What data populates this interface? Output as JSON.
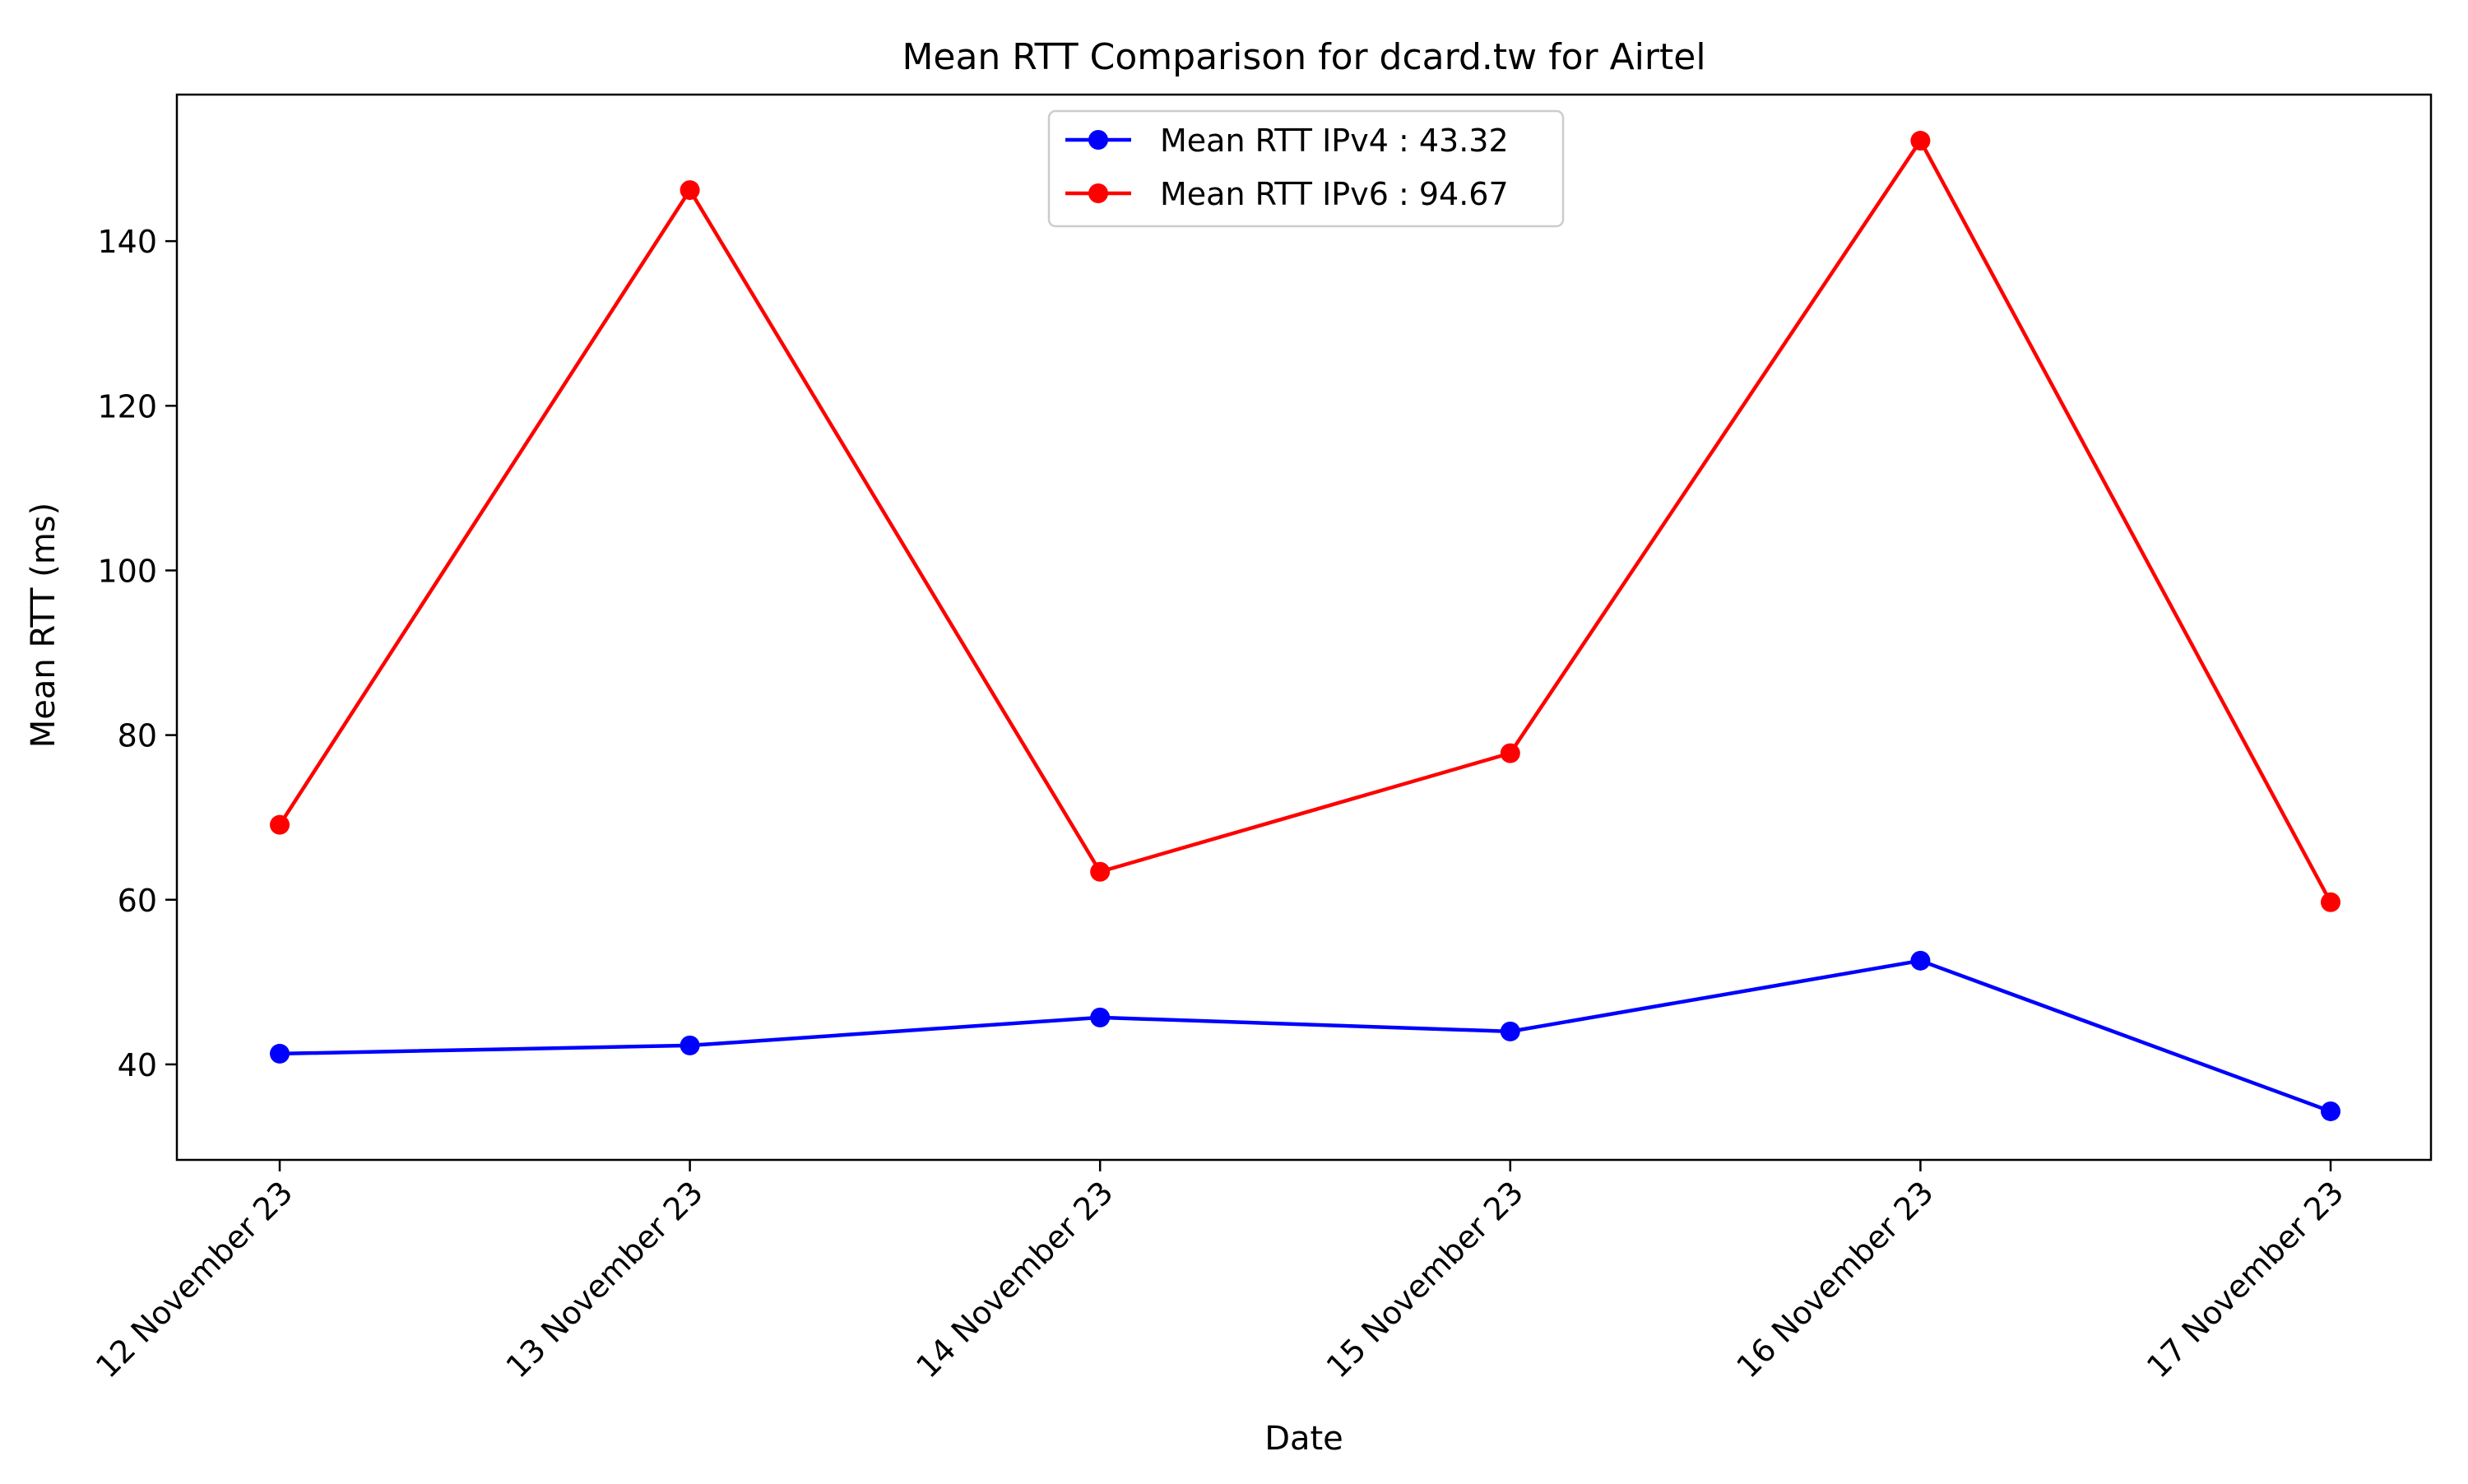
{
  "chart_data": {
    "type": "line",
    "title": "Mean RTT Comparison for dcard.tw for Airtel",
    "xlabel": "Date",
    "ylabel": "Mean RTT (ms)",
    "categories": [
      "12 November 23",
      "13 November 23",
      "14 November 23",
      "15 November 23",
      "16 November 23",
      "17 November 23"
    ],
    "ylim": [
      28.4,
      157.8
    ],
    "yticks": [
      40,
      60,
      80,
      100,
      120,
      140
    ],
    "grid": false,
    "legend_position": "top-center",
    "series": [
      {
        "name": "Mean RTT IPv4 : 43.32",
        "color": "#0000ff",
        "marker": "circle",
        "values": [
          41.3,
          42.3,
          45.7,
          44.0,
          52.6,
          34.3
        ]
      },
      {
        "name": "Mean RTT IPv6 : 94.67",
        "color": "#ff0000",
        "marker": "circle",
        "values": [
          69.1,
          146.2,
          63.4,
          77.8,
          152.2,
          59.7
        ]
      }
    ]
  }
}
